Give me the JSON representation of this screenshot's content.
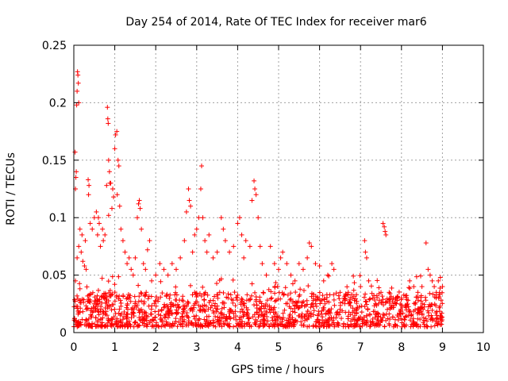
{
  "chart_data": {
    "type": "scatter",
    "title": "Day 254 of 2014, Rate Of TEC Index for receiver mar6",
    "xlabel": "GPS time / hours",
    "ylabel": "ROTI / TECUs",
    "xlim": [
      0,
      10
    ],
    "ylim": [
      0,
      0.25
    ],
    "x_ticks": [
      "0",
      "1",
      "2",
      "3",
      "4",
      "5",
      "6",
      "7",
      "8",
      "9",
      "10"
    ],
    "y_ticks": [
      "0",
      "0.05",
      "0.1",
      "0.15",
      "0.2",
      "0.25"
    ],
    "grid": true,
    "marker": "+",
    "color": "#ff0000",
    "series": [
      {
        "name": "ROTI",
        "points": [
          [
            0.03,
            0.157
          ],
          [
            0.05,
            0.135
          ],
          [
            0.07,
            0.198
          ],
          [
            0.08,
            0.21
          ],
          [
            0.09,
            0.227
          ],
          [
            0.1,
            0.224
          ],
          [
            0.11,
            0.217
          ],
          [
            0.12,
            0.2
          ],
          [
            0.06,
            0.14
          ],
          [
            0.04,
            0.125
          ],
          [
            0.08,
            0.065
          ],
          [
            0.12,
            0.075
          ],
          [
            0.18,
            0.07
          ],
          [
            0.22,
            0.062
          ],
          [
            0.26,
            0.058
          ],
          [
            0.3,
            0.055
          ],
          [
            0.04,
            0.045
          ],
          [
            0.15,
            0.09
          ],
          [
            0.2,
            0.085
          ],
          [
            0.28,
            0.08
          ],
          [
            0.35,
            0.133
          ],
          [
            0.37,
            0.128
          ],
          [
            0.36,
            0.12
          ],
          [
            0.4,
            0.095
          ],
          [
            0.45,
            0.09
          ],
          [
            0.5,
            0.1
          ],
          [
            0.55,
            0.105
          ],
          [
            0.6,
            0.1
          ],
          [
            0.62,
            0.095
          ],
          [
            0.58,
            0.085
          ],
          [
            0.65,
            0.075
          ],
          [
            0.7,
            0.09
          ],
          [
            0.72,
            0.08
          ],
          [
            0.76,
            0.085
          ],
          [
            0.82,
            0.196
          ],
          [
            0.83,
            0.186
          ],
          [
            0.84,
            0.182
          ],
          [
            0.85,
            0.15
          ],
          [
            0.87,
            0.14
          ],
          [
            0.88,
            0.13
          ],
          [
            0.8,
            0.128
          ],
          [
            0.9,
            0.13
          ],
          [
            0.95,
            0.125
          ],
          [
            0.97,
            0.118
          ],
          [
            0.93,
            0.108
          ],
          [
            0.85,
            0.102
          ],
          [
            1.0,
            0.16
          ],
          [
            1.02,
            0.172
          ],
          [
            1.05,
            0.175
          ],
          [
            1.08,
            0.15
          ],
          [
            1.1,
            0.145
          ],
          [
            1.06,
            0.12
          ],
          [
            1.12,
            0.11
          ],
          [
            1.15,
            0.09
          ],
          [
            1.2,
            0.08
          ],
          [
            1.25,
            0.07
          ],
          [
            1.3,
            0.06
          ],
          [
            1.35,
            0.065
          ],
          [
            1.4,
            0.055
          ],
          [
            1.45,
            0.05
          ],
          [
            1.5,
            0.065
          ],
          [
            1.55,
            0.1
          ],
          [
            1.58,
            0.112
          ],
          [
            1.6,
            0.115
          ],
          [
            1.62,
            0.108
          ],
          [
            1.65,
            0.09
          ],
          [
            1.7,
            0.06
          ],
          [
            1.75,
            0.055
          ],
          [
            1.8,
            0.072
          ],
          [
            1.85,
            0.08
          ],
          [
            1.9,
            0.045
          ],
          [
            2.0,
            0.05
          ],
          [
            2.1,
            0.06
          ],
          [
            2.2,
            0.055
          ],
          [
            2.3,
            0.05
          ],
          [
            2.4,
            0.06
          ],
          [
            2.5,
            0.055
          ],
          [
            2.6,
            0.065
          ],
          [
            2.7,
            0.08
          ],
          [
            2.75,
            0.105
          ],
          [
            2.8,
            0.125
          ],
          [
            2.82,
            0.115
          ],
          [
            2.85,
            0.11
          ],
          [
            2.9,
            0.07
          ],
          [
            2.95,
            0.085
          ],
          [
            3.0,
            0.09
          ],
          [
            3.05,
            0.1
          ],
          [
            3.1,
            0.125
          ],
          [
            3.12,
            0.145
          ],
          [
            3.15,
            0.1
          ],
          [
            3.2,
            0.08
          ],
          [
            3.25,
            0.07
          ],
          [
            3.3,
            0.085
          ],
          [
            3.4,
            0.065
          ],
          [
            3.5,
            0.07
          ],
          [
            3.6,
            0.1
          ],
          [
            3.65,
            0.09
          ],
          [
            3.7,
            0.08
          ],
          [
            3.8,
            0.07
          ],
          [
            3.9,
            0.075
          ],
          [
            4.0,
            0.095
          ],
          [
            4.05,
            0.1
          ],
          [
            4.1,
            0.085
          ],
          [
            4.15,
            0.065
          ],
          [
            4.2,
            0.08
          ],
          [
            4.3,
            0.075
          ],
          [
            4.35,
            0.115
          ],
          [
            4.4,
            0.132
          ],
          [
            4.42,
            0.125
          ],
          [
            4.45,
            0.12
          ],
          [
            4.5,
            0.1
          ],
          [
            4.55,
            0.075
          ],
          [
            4.6,
            0.06
          ],
          [
            4.7,
            0.05
          ],
          [
            4.8,
            0.075
          ],
          [
            4.9,
            0.06
          ],
          [
            5.0,
            0.055
          ],
          [
            5.05,
            0.065
          ],
          [
            5.1,
            0.07
          ],
          [
            5.2,
            0.06
          ],
          [
            5.3,
            0.05
          ],
          [
            5.4,
            0.045
          ],
          [
            5.5,
            0.06
          ],
          [
            5.6,
            0.055
          ],
          [
            5.7,
            0.065
          ],
          [
            5.75,
            0.078
          ],
          [
            5.8,
            0.075
          ],
          [
            5.9,
            0.06
          ],
          [
            6.0,
            0.058
          ],
          [
            6.1,
            0.045
          ],
          [
            6.2,
            0.05
          ],
          [
            6.3,
            0.06
          ],
          [
            6.35,
            0.055
          ],
          [
            6.5,
            0.035
          ],
          [
            6.6,
            0.03
          ],
          [
            6.7,
            0.035
          ],
          [
            6.8,
            0.03
          ],
          [
            6.9,
            0.033
          ],
          [
            7.0,
            0.04
          ],
          [
            7.1,
            0.08
          ],
          [
            7.12,
            0.07
          ],
          [
            7.15,
            0.065
          ],
          [
            7.2,
            0.045
          ],
          [
            7.3,
            0.03
          ],
          [
            7.4,
            0.032
          ],
          [
            7.5,
            0.035
          ],
          [
            7.55,
            0.095
          ],
          [
            7.58,
            0.092
          ],
          [
            7.6,
            0.088
          ],
          [
            7.62,
            0.085
          ],
          [
            7.7,
            0.035
          ],
          [
            7.8,
            0.03
          ],
          [
            7.9,
            0.028
          ],
          [
            8.0,
            0.03
          ],
          [
            8.1,
            0.032
          ],
          [
            8.2,
            0.045
          ],
          [
            8.3,
            0.04
          ],
          [
            8.4,
            0.035
          ],
          [
            8.5,
            0.04
          ],
          [
            8.6,
            0.078
          ],
          [
            8.65,
            0.055
          ],
          [
            8.7,
            0.05
          ],
          [
            8.75,
            0.045
          ],
          [
            8.8,
            0.04
          ],
          [
            8.85,
            0.035
          ],
          [
            8.9,
            0.045
          ],
          [
            8.95,
            0.048
          ],
          [
            9.0,
            0.04
          ]
        ]
      }
    ],
    "dense_band": {
      "x_range": [
        0,
        9.0
      ],
      "y_typical": [
        0.005,
        0.035
      ]
    }
  }
}
